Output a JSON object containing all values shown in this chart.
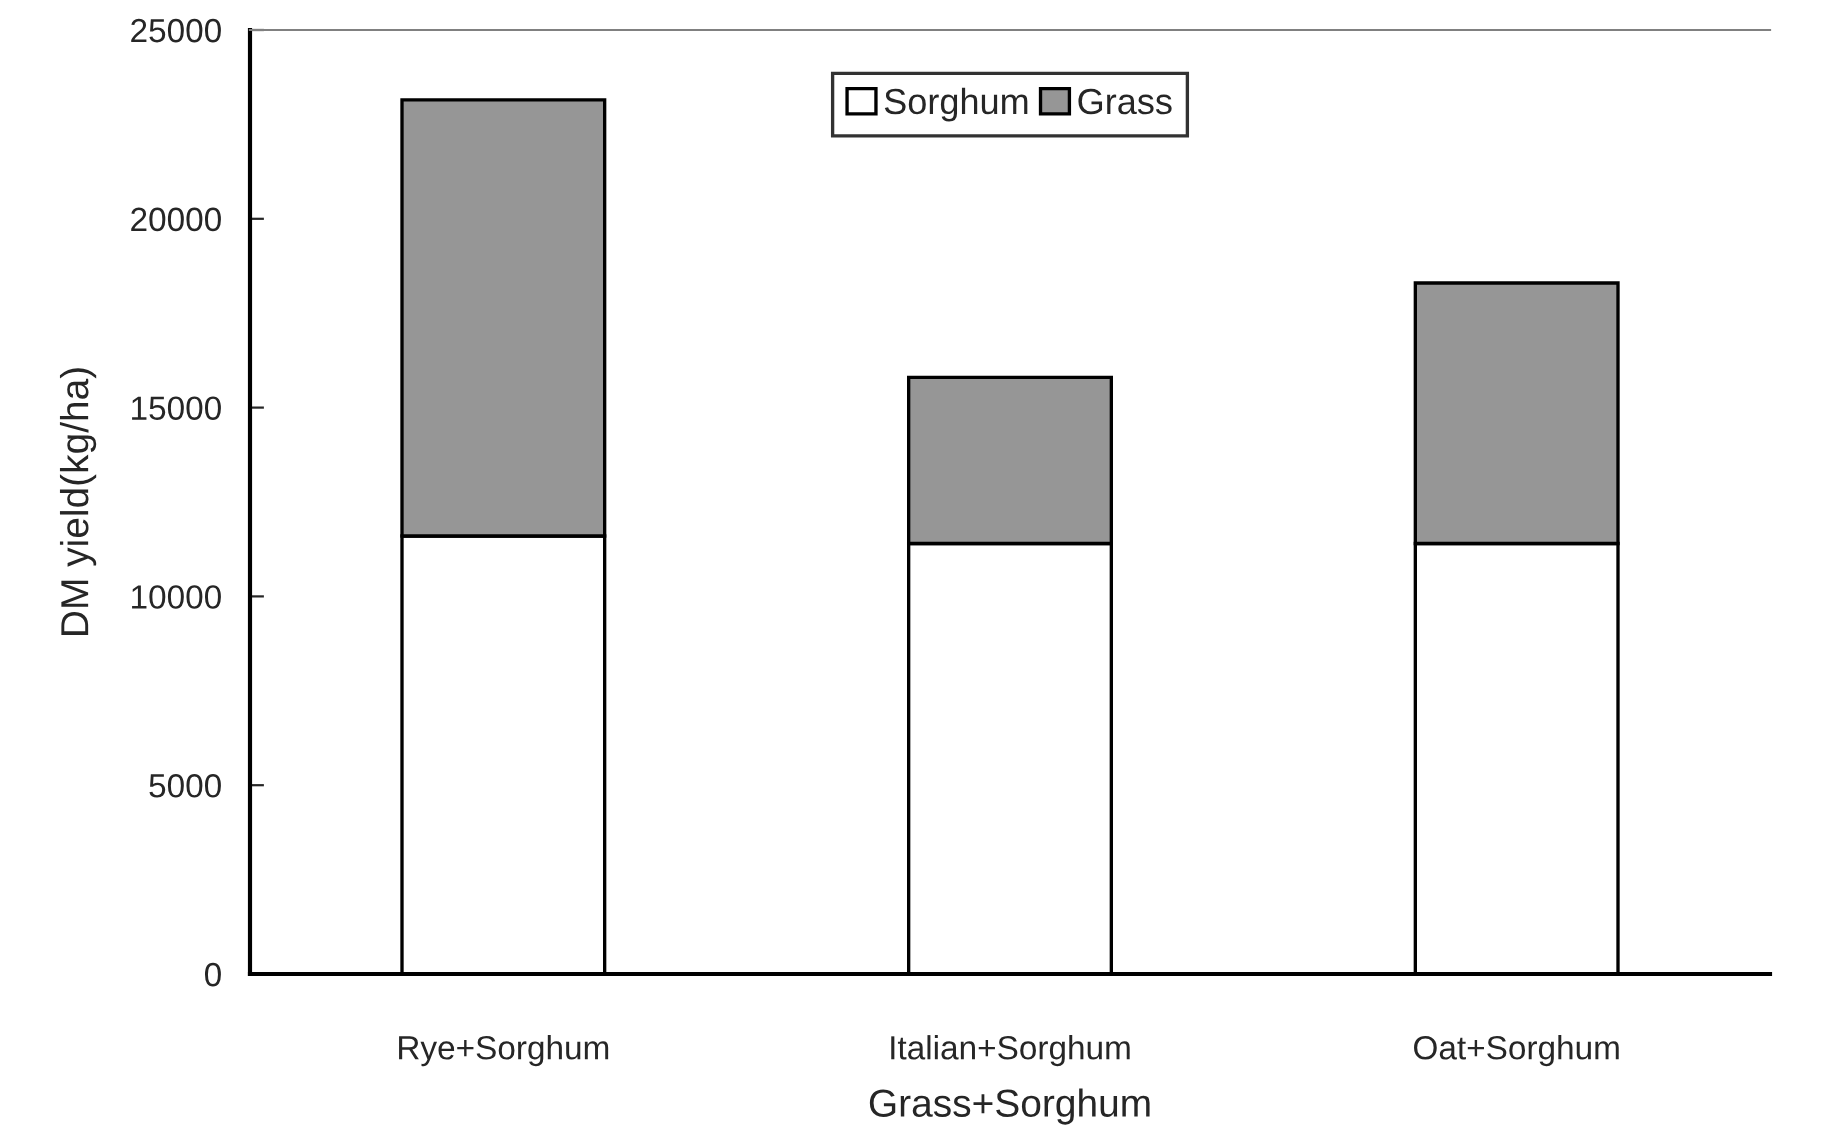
{
  "chart_data": {
    "type": "bar",
    "stacked": true,
    "xlabel": "Grass+Sorghum",
    "ylabel": "DM yield(kg/ha)",
    "categories": [
      "Rye+Sorghum",
      "Italian+Sorghum",
      "Oat+Sorghum"
    ],
    "series": [
      {
        "name": "Sorghum",
        "color": "#ffffff",
        "values": [
          11600,
          11400,
          11400
        ]
      },
      {
        "name": "Grass",
        "color": "#969696",
        "values": [
          11550,
          4400,
          6900
        ]
      }
    ],
    "ylim": [
      0,
      25000
    ],
    "yticks": [
      0,
      5000,
      10000,
      15000,
      20000,
      25000
    ],
    "grid": false,
    "legend": "top"
  }
}
